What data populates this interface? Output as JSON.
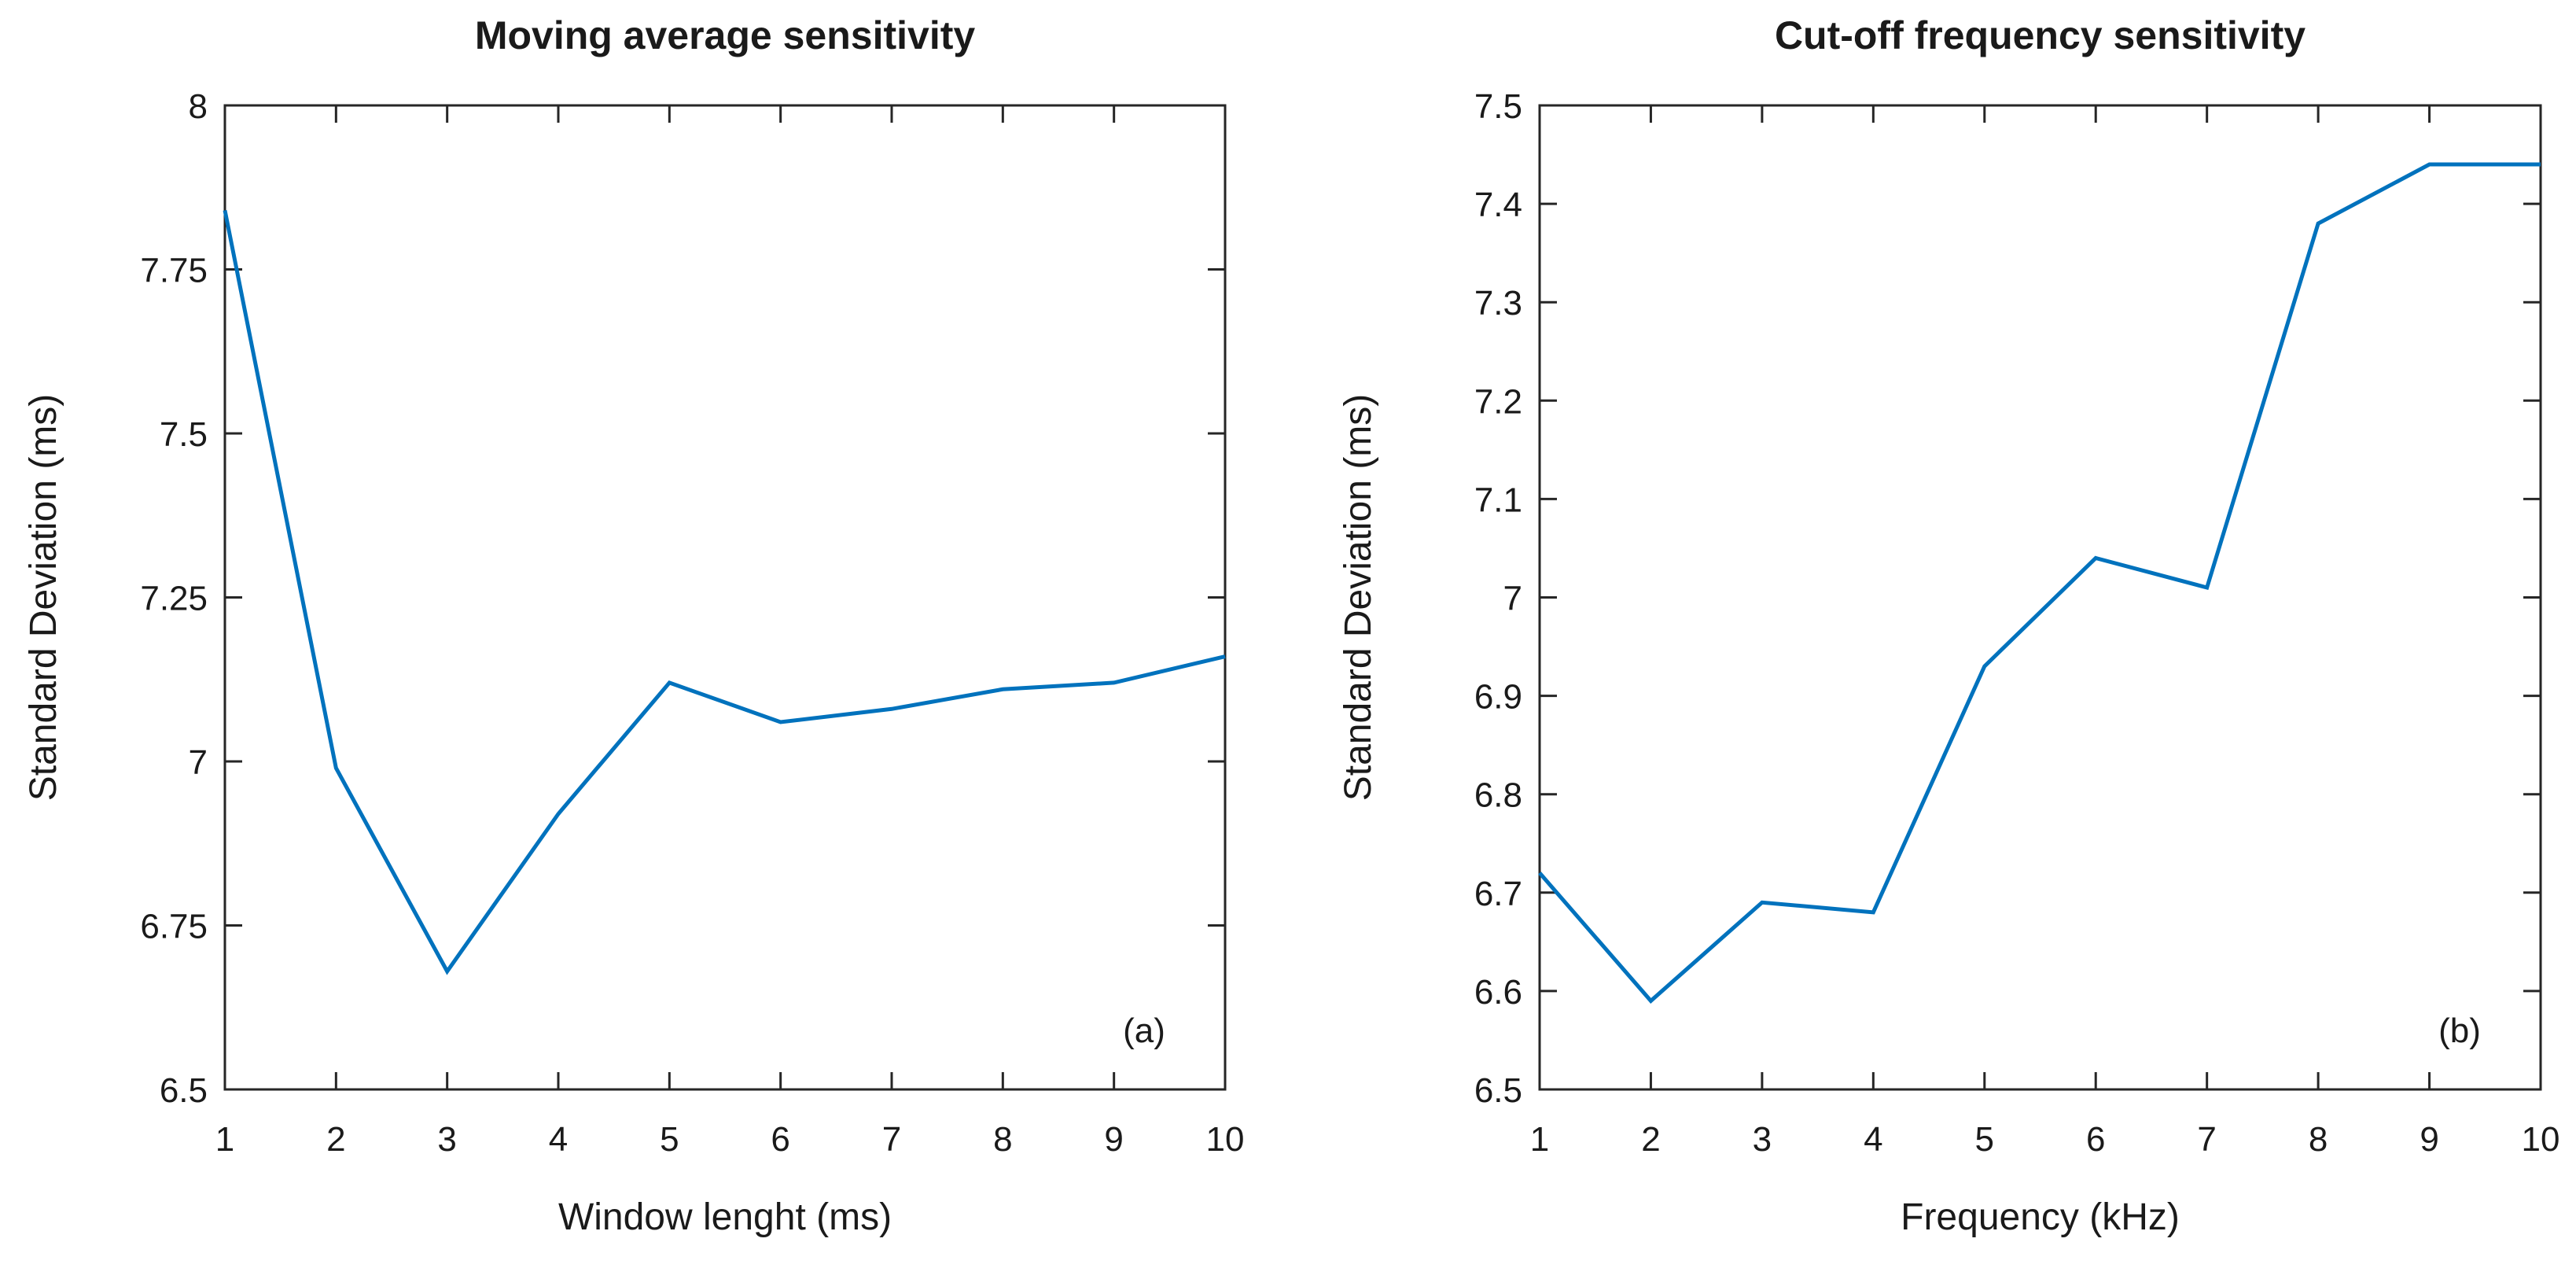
{
  "page": {
    "background": "#ffffff",
    "axis_color": "#262626",
    "text_color": "#1a1a1a"
  },
  "chart_data": [
    {
      "id": "a",
      "type": "line",
      "title": "Moving average sensitivity",
      "xlabel": "Window lenght (ms)",
      "ylabel": "Standard Deviation (ms)",
      "annotation": "(a)",
      "legend": null,
      "grid": false,
      "box": true,
      "line_color": "#0072BD",
      "x": [
        1,
        2,
        3,
        4,
        5,
        6,
        7,
        8,
        9,
        10
      ],
      "y": [
        7.84,
        6.99,
        6.68,
        6.92,
        7.12,
        7.06,
        7.08,
        7.11,
        7.12,
        7.16
      ],
      "xlim": [
        1,
        10
      ],
      "ylim": [
        6.5,
        8
      ],
      "xticks": [
        1,
        2,
        3,
        4,
        5,
        6,
        7,
        8,
        9,
        10
      ],
      "xtick_labels": [
        "1",
        "2",
        "3",
        "4",
        "5",
        "6",
        "7",
        "8",
        "9",
        "10"
      ],
      "yticks": [
        6.5,
        6.75,
        7,
        7.25,
        7.5,
        7.75,
        8
      ],
      "ytick_labels": [
        "6.5",
        "6.75",
        "7",
        "7.25",
        "7.5",
        "7.75",
        "8"
      ]
    },
    {
      "id": "b",
      "type": "line",
      "title": "Cut-off frequency sensitivity",
      "xlabel": "Frequency (kHz)",
      "ylabel": "Standard Deviation (ms)",
      "annotation": "(b)",
      "legend": null,
      "grid": false,
      "box": true,
      "line_color": "#0072BD",
      "x": [
        1,
        2,
        3,
        4,
        5,
        6,
        7,
        8,
        9,
        10
      ],
      "y": [
        6.72,
        6.59,
        6.69,
        6.68,
        6.93,
        7.04,
        7.01,
        7.38,
        7.44,
        7.44
      ],
      "xlim": [
        1,
        10
      ],
      "ylim": [
        6.5,
        7.5
      ],
      "xticks": [
        1,
        2,
        3,
        4,
        5,
        6,
        7,
        8,
        9,
        10
      ],
      "xtick_labels": [
        "1",
        "2",
        "3",
        "4",
        "5",
        "6",
        "7",
        "8",
        "9",
        "10"
      ],
      "yticks": [
        6.5,
        6.6,
        6.7,
        6.8,
        6.9,
        7,
        7.1,
        7.2,
        7.3,
        7.4,
        7.5
      ],
      "ytick_labels": [
        "6.5",
        "6.6",
        "6.7",
        "6.8",
        "6.9",
        "7",
        "7.1",
        "7.2",
        "7.3",
        "7.4",
        "7.5"
      ]
    }
  ]
}
